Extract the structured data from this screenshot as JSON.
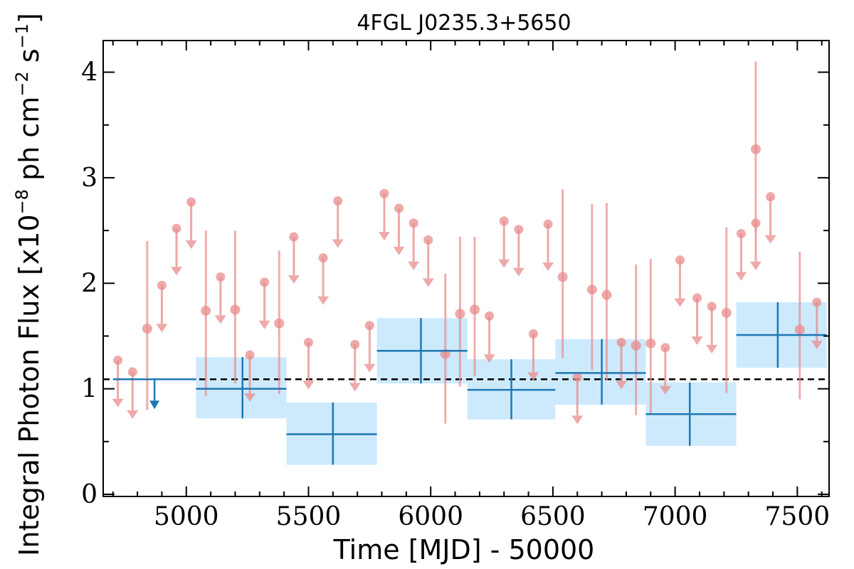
{
  "chart_data": {
    "type": "scatter",
    "title": "4FGL J0235.3+5650",
    "xlabel": "Time [MJD] - 50000",
    "ylabel_text": "Integral Photon Flux [x10",
    "ylabel_exp1": "−8",
    "ylabel_mid": " ph cm",
    "ylabel_exp2": "−2",
    "ylabel_s": " s",
    "ylabel_exp3": "−1",
    "ylabel_end": "]",
    "xlim": [
      4660,
      7630
    ],
    "ylim": [
      -0.02,
      4.3
    ],
    "xticks": [
      5000,
      5500,
      6000,
      6500,
      7000,
      7500
    ],
    "yticks": [
      0,
      1,
      2,
      3,
      4
    ],
    "mean_flux": 1.09,
    "colors": {
      "short_bins": "#e88c8c",
      "long_bins": "#1f77b4",
      "long_band": "#cdeafd",
      "mean_line": "#000000"
    },
    "short_bins_ul": [
      {
        "x": 4720,
        "y": 1.27
      },
      {
        "x": 4780,
        "y": 1.16
      },
      {
        "x": 4900,
        "y": 1.98
      },
      {
        "x": 4960,
        "y": 2.52
      },
      {
        "x": 5020,
        "y": 2.77
      },
      {
        "x": 5140,
        "y": 2.06
      },
      {
        "x": 5260,
        "y": 1.32
      },
      {
        "x": 5320,
        "y": 2.01
      },
      {
        "x": 5440,
        "y": 2.44
      },
      {
        "x": 5500,
        "y": 1.44
      },
      {
        "x": 5560,
        "y": 2.24
      },
      {
        "x": 5620,
        "y": 2.78
      },
      {
        "x": 5690,
        "y": 1.42
      },
      {
        "x": 5750,
        "y": 1.6
      },
      {
        "x": 5810,
        "y": 2.85
      },
      {
        "x": 5870,
        "y": 2.71
      },
      {
        "x": 5930,
        "y": 2.57
      },
      {
        "x": 5990,
        "y": 2.41
      },
      {
        "x": 6240,
        "y": 1.69
      },
      {
        "x": 6300,
        "y": 2.59
      },
      {
        "x": 6360,
        "y": 2.51
      },
      {
        "x": 6420,
        "y": 1.52
      },
      {
        "x": 6480,
        "y": 2.56
      },
      {
        "x": 6600,
        "y": 1.11
      },
      {
        "x": 6780,
        "y": 1.44
      },
      {
        "x": 6960,
        "y": 1.39
      },
      {
        "x": 7020,
        "y": 2.22
      },
      {
        "x": 7090,
        "y": 1.86
      },
      {
        "x": 7150,
        "y": 1.78
      },
      {
        "x": 7270,
        "y": 2.47
      },
      {
        "x": 7330,
        "y": 2.57
      },
      {
        "x": 7390,
        "y": 2.82
      },
      {
        "x": 7580,
        "y": 1.82
      }
    ],
    "short_bins_det": [
      {
        "x": 4840,
        "y": 1.57,
        "lo": 0.8,
        "hi": 2.4
      },
      {
        "x": 5080,
        "y": 1.74,
        "lo": 0.93,
        "hi": 2.5
      },
      {
        "x": 5200,
        "y": 1.75,
        "lo": 1.05,
        "hi": 2.5
      },
      {
        "x": 5380,
        "y": 1.62,
        "lo": 0.95,
        "hi": 2.31
      },
      {
        "x": 6060,
        "y": 1.33,
        "lo": 0.67,
        "hi": 2.09
      },
      {
        "x": 6120,
        "y": 1.71,
        "lo": 1.02,
        "hi": 2.44
      },
      {
        "x": 6180,
        "y": 1.75,
        "lo": 1.12,
        "hi": 2.44
      },
      {
        "x": 6540,
        "y": 2.06,
        "lo": 1.29,
        "hi": 2.89
      },
      {
        "x": 6660,
        "y": 1.94,
        "lo": 1.18,
        "hi": 2.75
      },
      {
        "x": 6720,
        "y": 1.89,
        "lo": 1.08,
        "hi": 2.76
      },
      {
        "x": 6840,
        "y": 1.41,
        "lo": 0.75,
        "hi": 2.18
      },
      {
        "x": 6900,
        "y": 1.43,
        "lo": 0.76,
        "hi": 2.23
      },
      {
        "x": 7210,
        "y": 1.72,
        "lo": 0.96,
        "hi": 2.53
      },
      {
        "x": 7330,
        "y": 3.27,
        "lo": 2.49,
        "hi": 4.1
      },
      {
        "x": 7510,
        "y": 1.56,
        "lo": 0.9,
        "hi": 2.3
      }
    ],
    "long_bins_ul": [
      {
        "x": 4870,
        "x0": 4700,
        "x1": 5040,
        "y": 1.09
      }
    ],
    "long_bins_det": [
      {
        "x": 5230,
        "x0": 5040,
        "x1": 5410,
        "y": 1.0,
        "lo": 0.72,
        "hi": 1.3
      },
      {
        "x": 5600,
        "x0": 5410,
        "x1": 5780,
        "y": 0.57,
        "lo": 0.28,
        "hi": 0.87
      },
      {
        "x": 5960,
        "x0": 5780,
        "x1": 6150,
        "y": 1.36,
        "lo": 1.05,
        "hi": 1.67
      },
      {
        "x": 6330,
        "x0": 6150,
        "x1": 6510,
        "y": 0.99,
        "lo": 0.71,
        "hi": 1.28
      },
      {
        "x": 6700,
        "x0": 6510,
        "x1": 6880,
        "y": 1.15,
        "lo": 0.85,
        "hi": 1.47
      },
      {
        "x": 7060,
        "x0": 6880,
        "x1": 7250,
        "y": 0.76,
        "lo": 0.46,
        "hi": 1.06
      },
      {
        "x": 7420,
        "x0": 7250,
        "x1": 7620,
        "y": 1.51,
        "lo": 1.2,
        "hi": 1.82
      }
    ]
  }
}
